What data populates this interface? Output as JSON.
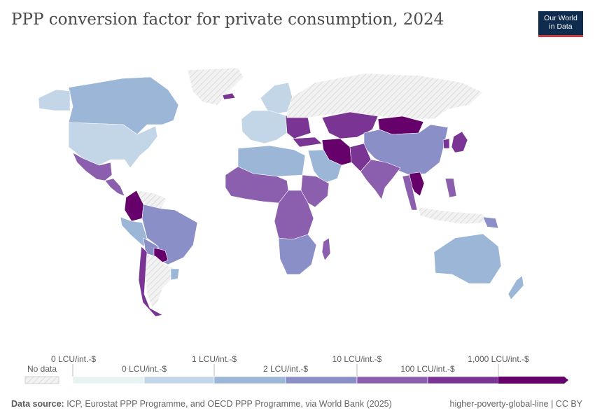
{
  "header": {
    "title": "PPP conversion factor for private consumption, 2024",
    "logo_line1": "Our World",
    "logo_line2": "in Data"
  },
  "map": {
    "colors": {
      "no_data": "#e6e6e6",
      "bin1": "#e7f2f3",
      "bin2": "#c3d6e8",
      "bin3": "#9cb6d8",
      "bin4": "#8a8fc8",
      "bin5": "#8c5fae",
      "bin6": "#7a3594",
      "bin7": "#66006b"
    },
    "regions": [
      {
        "name": "Canada",
        "bin": "bin3"
      },
      {
        "name": "United States",
        "bin": "bin2"
      },
      {
        "name": "Mexico",
        "bin": "bin5"
      },
      {
        "name": "Colombia",
        "bin": "bin7"
      },
      {
        "name": "Brazil",
        "bin": "bin4"
      },
      {
        "name": "Peru",
        "bin": "bin3"
      },
      {
        "name": "Paraguay",
        "bin": "bin7"
      },
      {
        "name": "Chile",
        "bin": "bin6"
      },
      {
        "name": "Argentina",
        "bin": "no_data"
      },
      {
        "name": "Greenland",
        "bin": "no_data"
      },
      {
        "name": "Europe",
        "bin": "bin2"
      },
      {
        "name": "Russia",
        "bin": "no_data"
      },
      {
        "name": "Kazakhstan",
        "bin": "bin6"
      },
      {
        "name": "Mongolia",
        "bin": "bin7"
      },
      {
        "name": "China",
        "bin": "bin4"
      },
      {
        "name": "Iran",
        "bin": "bin7"
      },
      {
        "name": "India",
        "bin": "bin5"
      },
      {
        "name": "Japan",
        "bin": "bin6"
      },
      {
        "name": "Southeast Asia",
        "bin": "bin7"
      },
      {
        "name": "Saudi Arabia",
        "bin": "bin3"
      },
      {
        "name": "West Africa",
        "bin": "bin5"
      },
      {
        "name": "Central Africa",
        "bin": "bin5"
      },
      {
        "name": "Southern Africa",
        "bin": "bin4"
      },
      {
        "name": "Australia",
        "bin": "bin3"
      },
      {
        "name": "New Zealand",
        "bin": "bin3"
      }
    ]
  },
  "legend": {
    "no_data_label": "No data",
    "top_labels": [
      "0 LCU/int.-$",
      "1 LCU/int.-$",
      "10 LCU/int.-$",
      "1,000 LCU/int.-$"
    ],
    "bottom_labels": [
      "0 LCU/int.-$",
      "2 LCU/int.-$",
      "100 LCU/int.-$"
    ]
  },
  "footer": {
    "source_label": "Data source:",
    "source_text": " ICP, Eurostat PPP Programme, and OECD PPP Programme, via World Bank (2025)",
    "license": "higher-poverty-global-line | CC BY"
  }
}
